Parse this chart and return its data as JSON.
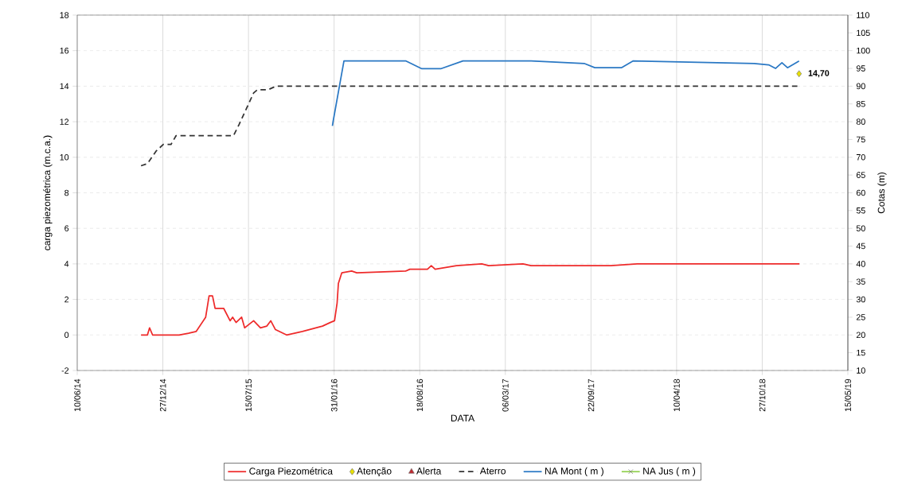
{
  "chart_data": {
    "type": "line",
    "xlabel": "DATA",
    "ylabel": "carga piezométrica (m.c.a.)",
    "y2label": "Cotas (m)",
    "xlim": [
      "2014-06-10",
      "2019-05-15"
    ],
    "xticks": [
      {
        "value": "2014-06-10",
        "label": "10/06/14"
      },
      {
        "value": "2014-12-27",
        "label": "27/12/14"
      },
      {
        "value": "2015-07-15",
        "label": "15/07/15"
      },
      {
        "value": "2016-01-31",
        "label": "31/01/16"
      },
      {
        "value": "2016-08-18",
        "label": "18/08/16"
      },
      {
        "value": "2017-03-06",
        "label": "06/03/17"
      },
      {
        "value": "2017-09-22",
        "label": "22/09/17"
      },
      {
        "value": "2018-04-10",
        "label": "10/04/18"
      },
      {
        "value": "2018-10-27",
        "label": "27/10/18"
      },
      {
        "value": "2019-05-15",
        "label": "15/05/19"
      }
    ],
    "ylim": [
      -2,
      18
    ],
    "yticks": [
      -2,
      0,
      2,
      4,
      6,
      8,
      10,
      12,
      14,
      16,
      18
    ],
    "y2lim": [
      10,
      110
    ],
    "y2ticks": [
      10,
      15,
      20,
      25,
      30,
      35,
      40,
      45,
      50,
      55,
      60,
      65,
      70,
      75,
      80,
      85,
      90,
      95,
      100,
      105,
      110
    ],
    "grid": true,
    "legend": "bottom",
    "series": [
      {
        "name": "Carga Piezométrica",
        "color": "#ee2a2a",
        "marker": "none",
        "line_style": "solid",
        "x": [
          "2014-11-06",
          "2014-11-21",
          "2014-11-26",
          "2014-12-03",
          "2015-02-03",
          "2015-02-25",
          "2015-03-15",
          "2015-04-06",
          "2015-04-14",
          "2015-04-22",
          "2015-04-28",
          "2015-05-18",
          "2015-06-02",
          "2015-06-08",
          "2015-06-16",
          "2015-06-29",
          "2015-07-06",
          "2015-07-27",
          "2015-08-12",
          "2015-08-27",
          "2015-09-05",
          "2015-09-16",
          "2015-10-12",
          "2015-11-18",
          "2016-01-04",
          "2016-01-22",
          "2016-02-01",
          "2016-02-07",
          "2016-02-10",
          "2016-02-18",
          "2016-03-12",
          "2016-03-24",
          "2016-07-17",
          "2016-07-26",
          "2016-09-05",
          "2016-09-14",
          "2016-09-23",
          "2016-11-12",
          "2017-01-10",
          "2017-01-26",
          "2017-04-16",
          "2017-05-05",
          "2017-11-07",
          "2018-01-08",
          "2018-04-29",
          "2019-01-22"
        ],
        "values": [
          0,
          0,
          0.4,
          0,
          0,
          0.1,
          0.2,
          1.0,
          2.2,
          2.2,
          1.5,
          1.5,
          0.8,
          1.0,
          0.7,
          1.0,
          0.4,
          0.8,
          0.4,
          0.5,
          0.8,
          0.3,
          0,
          0.2,
          0.5,
          0.7,
          0.8,
          1.8,
          2.9,
          3.5,
          3.6,
          3.5,
          3.6,
          3.7,
          3.7,
          3.9,
          3.7,
          3.9,
          4.0,
          3.9,
          4.0,
          3.9,
          3.9,
          4.0,
          4.0,
          4.0
        ]
      },
      {
        "name": "Atenção",
        "color": "#e8e000",
        "type": "scatter",
        "marker": "diamond",
        "x": [
          "2019-01-21"
        ],
        "values": [
          14.7
        ],
        "value_labels": [
          "14,70"
        ]
      },
      {
        "name": "Alerta",
        "color": "#c0272d",
        "type": "scatter",
        "marker": "triangle"
      },
      {
        "name": "Aterro",
        "color": "#333333",
        "marker": "none",
        "line_style": "dashed",
        "axis": "y2",
        "x": [
          "2014-11-06",
          "2014-11-21",
          "2014-12-11",
          "2014-12-28",
          "2015-01-15",
          "2015-01-27",
          "2015-06-10",
          "2015-06-23",
          "2015-07-27",
          "2015-08-05",
          "2015-08-30",
          "2015-09-17",
          "2019-01-21"
        ],
        "values": [
          67.6,
          68.2,
          71.7,
          73.6,
          73.6,
          76.1,
          76.1,
          79.2,
          88.1,
          89.0,
          89.0,
          90,
          90
        ]
      },
      {
        "name": "NA Mont ( m )",
        "color": "#2a78c4",
        "marker": "none",
        "line_style": "solid",
        "axis": "y2",
        "x": [
          "2016-01-27",
          "2016-01-29",
          "2016-02-23",
          "2016-07-17",
          "2016-08-23",
          "2016-10-06",
          "2016-11-27",
          "2017-05-05",
          "2017-09-06",
          "2017-10-01",
          "2017-12-02",
          "2017-12-29",
          "2018-10-08",
          "2018-11-11",
          "2018-11-27",
          "2018-12-12",
          "2018-12-25",
          "2019-01-21"
        ],
        "values": [
          78.8,
          80.3,
          97.1,
          97.1,
          94.9,
          94.9,
          97.1,
          97.1,
          96.4,
          95.2,
          95.2,
          97.1,
          96.4,
          96.0,
          95.0,
          96.6,
          95.2,
          97.1
        ]
      },
      {
        "name": "NA Jus ( m )",
        "color": "#92d050",
        "marker": "cross",
        "line_style": "solid",
        "axis": "y2"
      }
    ]
  }
}
